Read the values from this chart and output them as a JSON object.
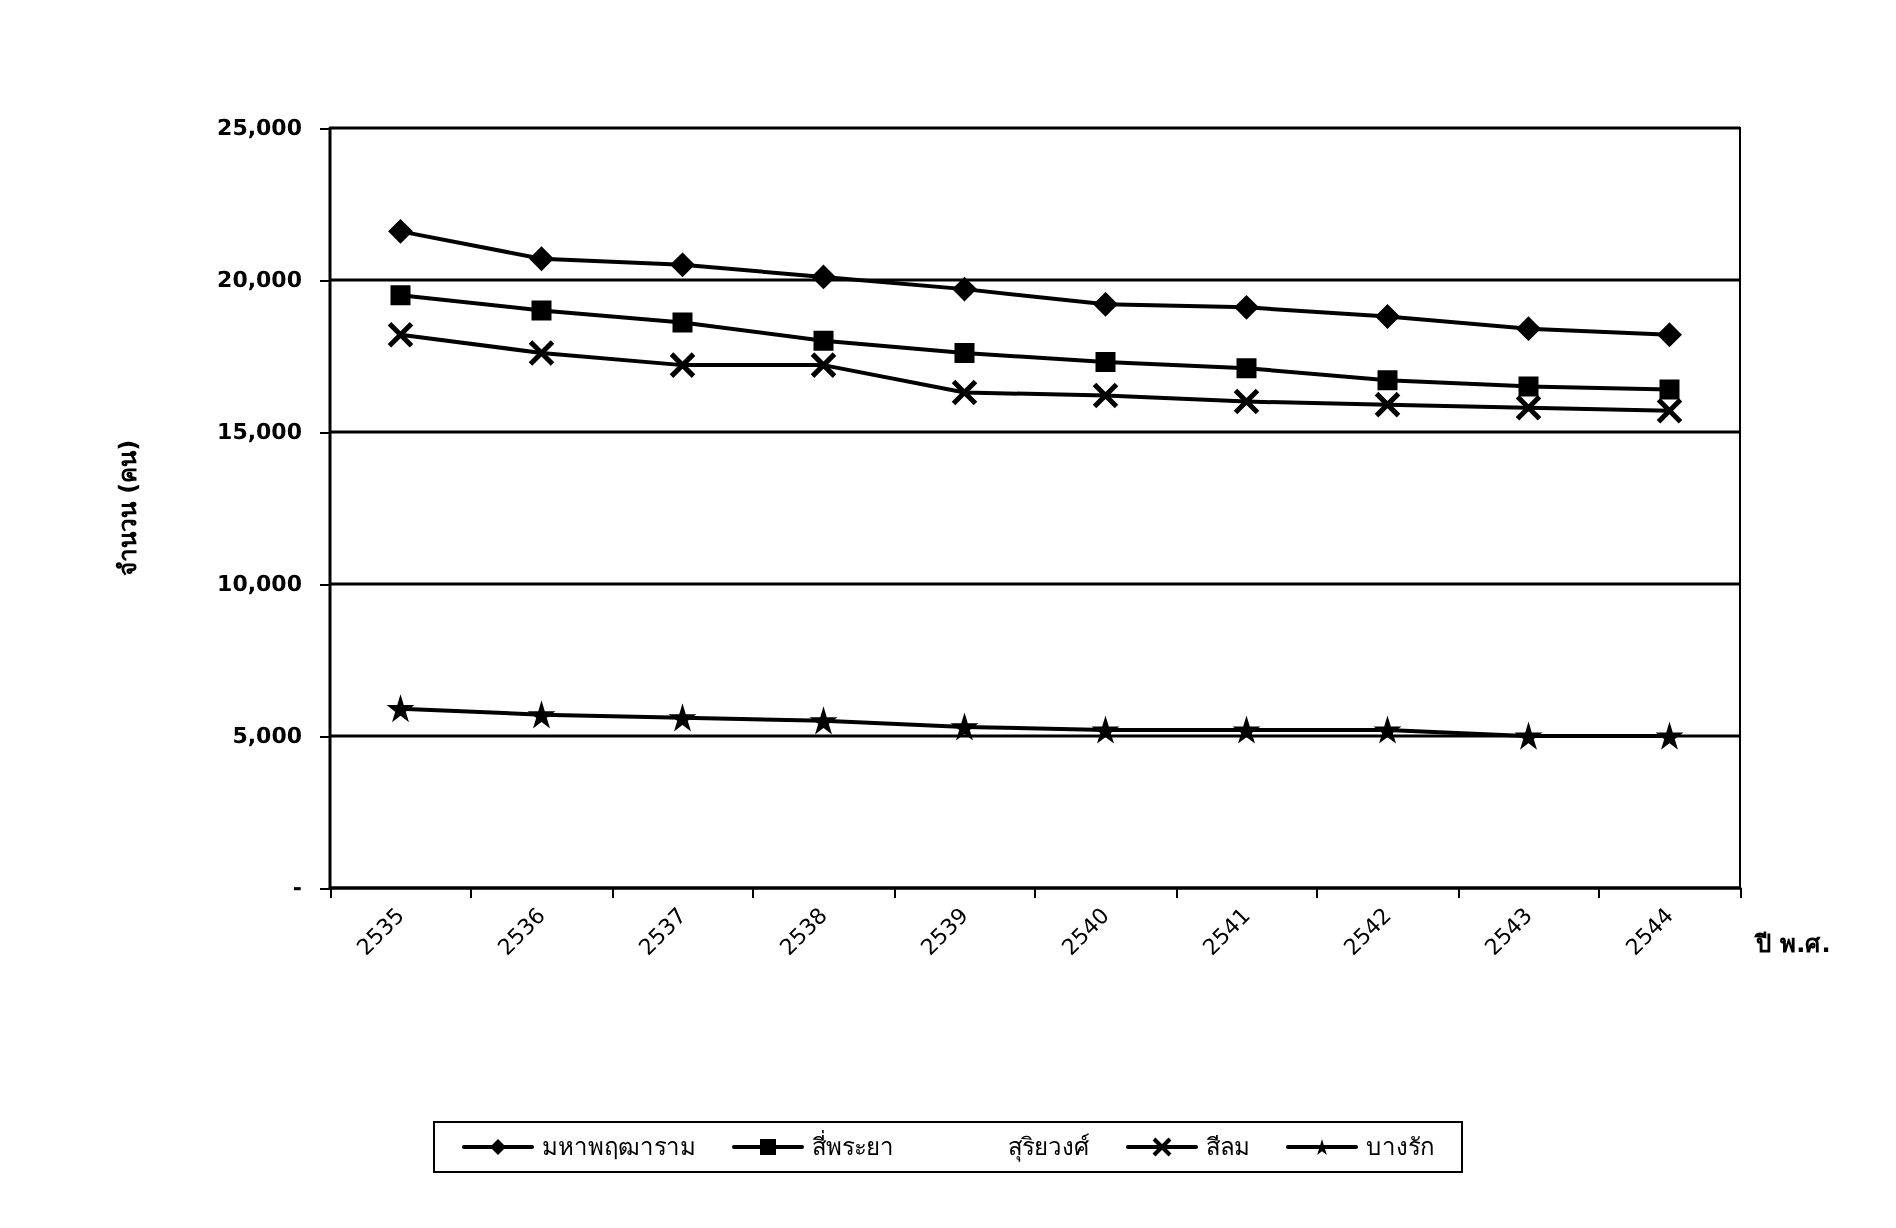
{
  "chart_data": {
    "type": "line",
    "ylabel": "จำนวน (คน)",
    "xlabel": "ปี พ.ศ.",
    "categories": [
      "2535",
      "2536",
      "2537",
      "2538",
      "2539",
      "2540",
      "2541",
      "2542",
      "2543",
      "2544"
    ],
    "ylim": [
      0,
      25000
    ],
    "yticks": [
      {
        "value": 0,
        "label": "-"
      },
      {
        "value": 5000,
        "label": "5,000"
      },
      {
        "value": 10000,
        "label": "10,000"
      },
      {
        "value": 15000,
        "label": "15,000"
      },
      {
        "value": 20000,
        "label": "20,000"
      },
      {
        "value": 25000,
        "label": "25,000"
      }
    ],
    "grid": "y",
    "legend": "bottom",
    "line_style": "solid",
    "series": [
      {
        "name": "มหาพฤฒาราม",
        "color": "#000000",
        "marker": "diamond",
        "values": [
          21600,
          20700,
          20500,
          20100,
          19700,
          19200,
          19100,
          18800,
          18400,
          18200
        ]
      },
      {
        "name": "สี่พระยา",
        "color": "#000000",
        "marker": "square",
        "values": [
          19500,
          19000,
          18600,
          18000,
          17600,
          17300,
          17100,
          16700,
          16500,
          16400
        ]
      },
      {
        "name": "สุริยวงศ์",
        "marker": "none",
        "values": [
          null,
          null,
          null,
          null,
          null,
          null,
          null,
          null,
          null,
          null
        ]
      },
      {
        "name": "สีลม",
        "color": "#000000",
        "marker": "cross",
        "values": [
          18200,
          17600,
          17200,
          17200,
          16300,
          16200,
          16000,
          15900,
          15800,
          15700
        ]
      },
      {
        "name": "บางรัก",
        "color": "#000000",
        "marker": "star",
        "values": [
          5900,
          5700,
          5600,
          5500,
          5300,
          5200,
          5200,
          5200,
          5000,
          5000
        ]
      }
    ]
  }
}
